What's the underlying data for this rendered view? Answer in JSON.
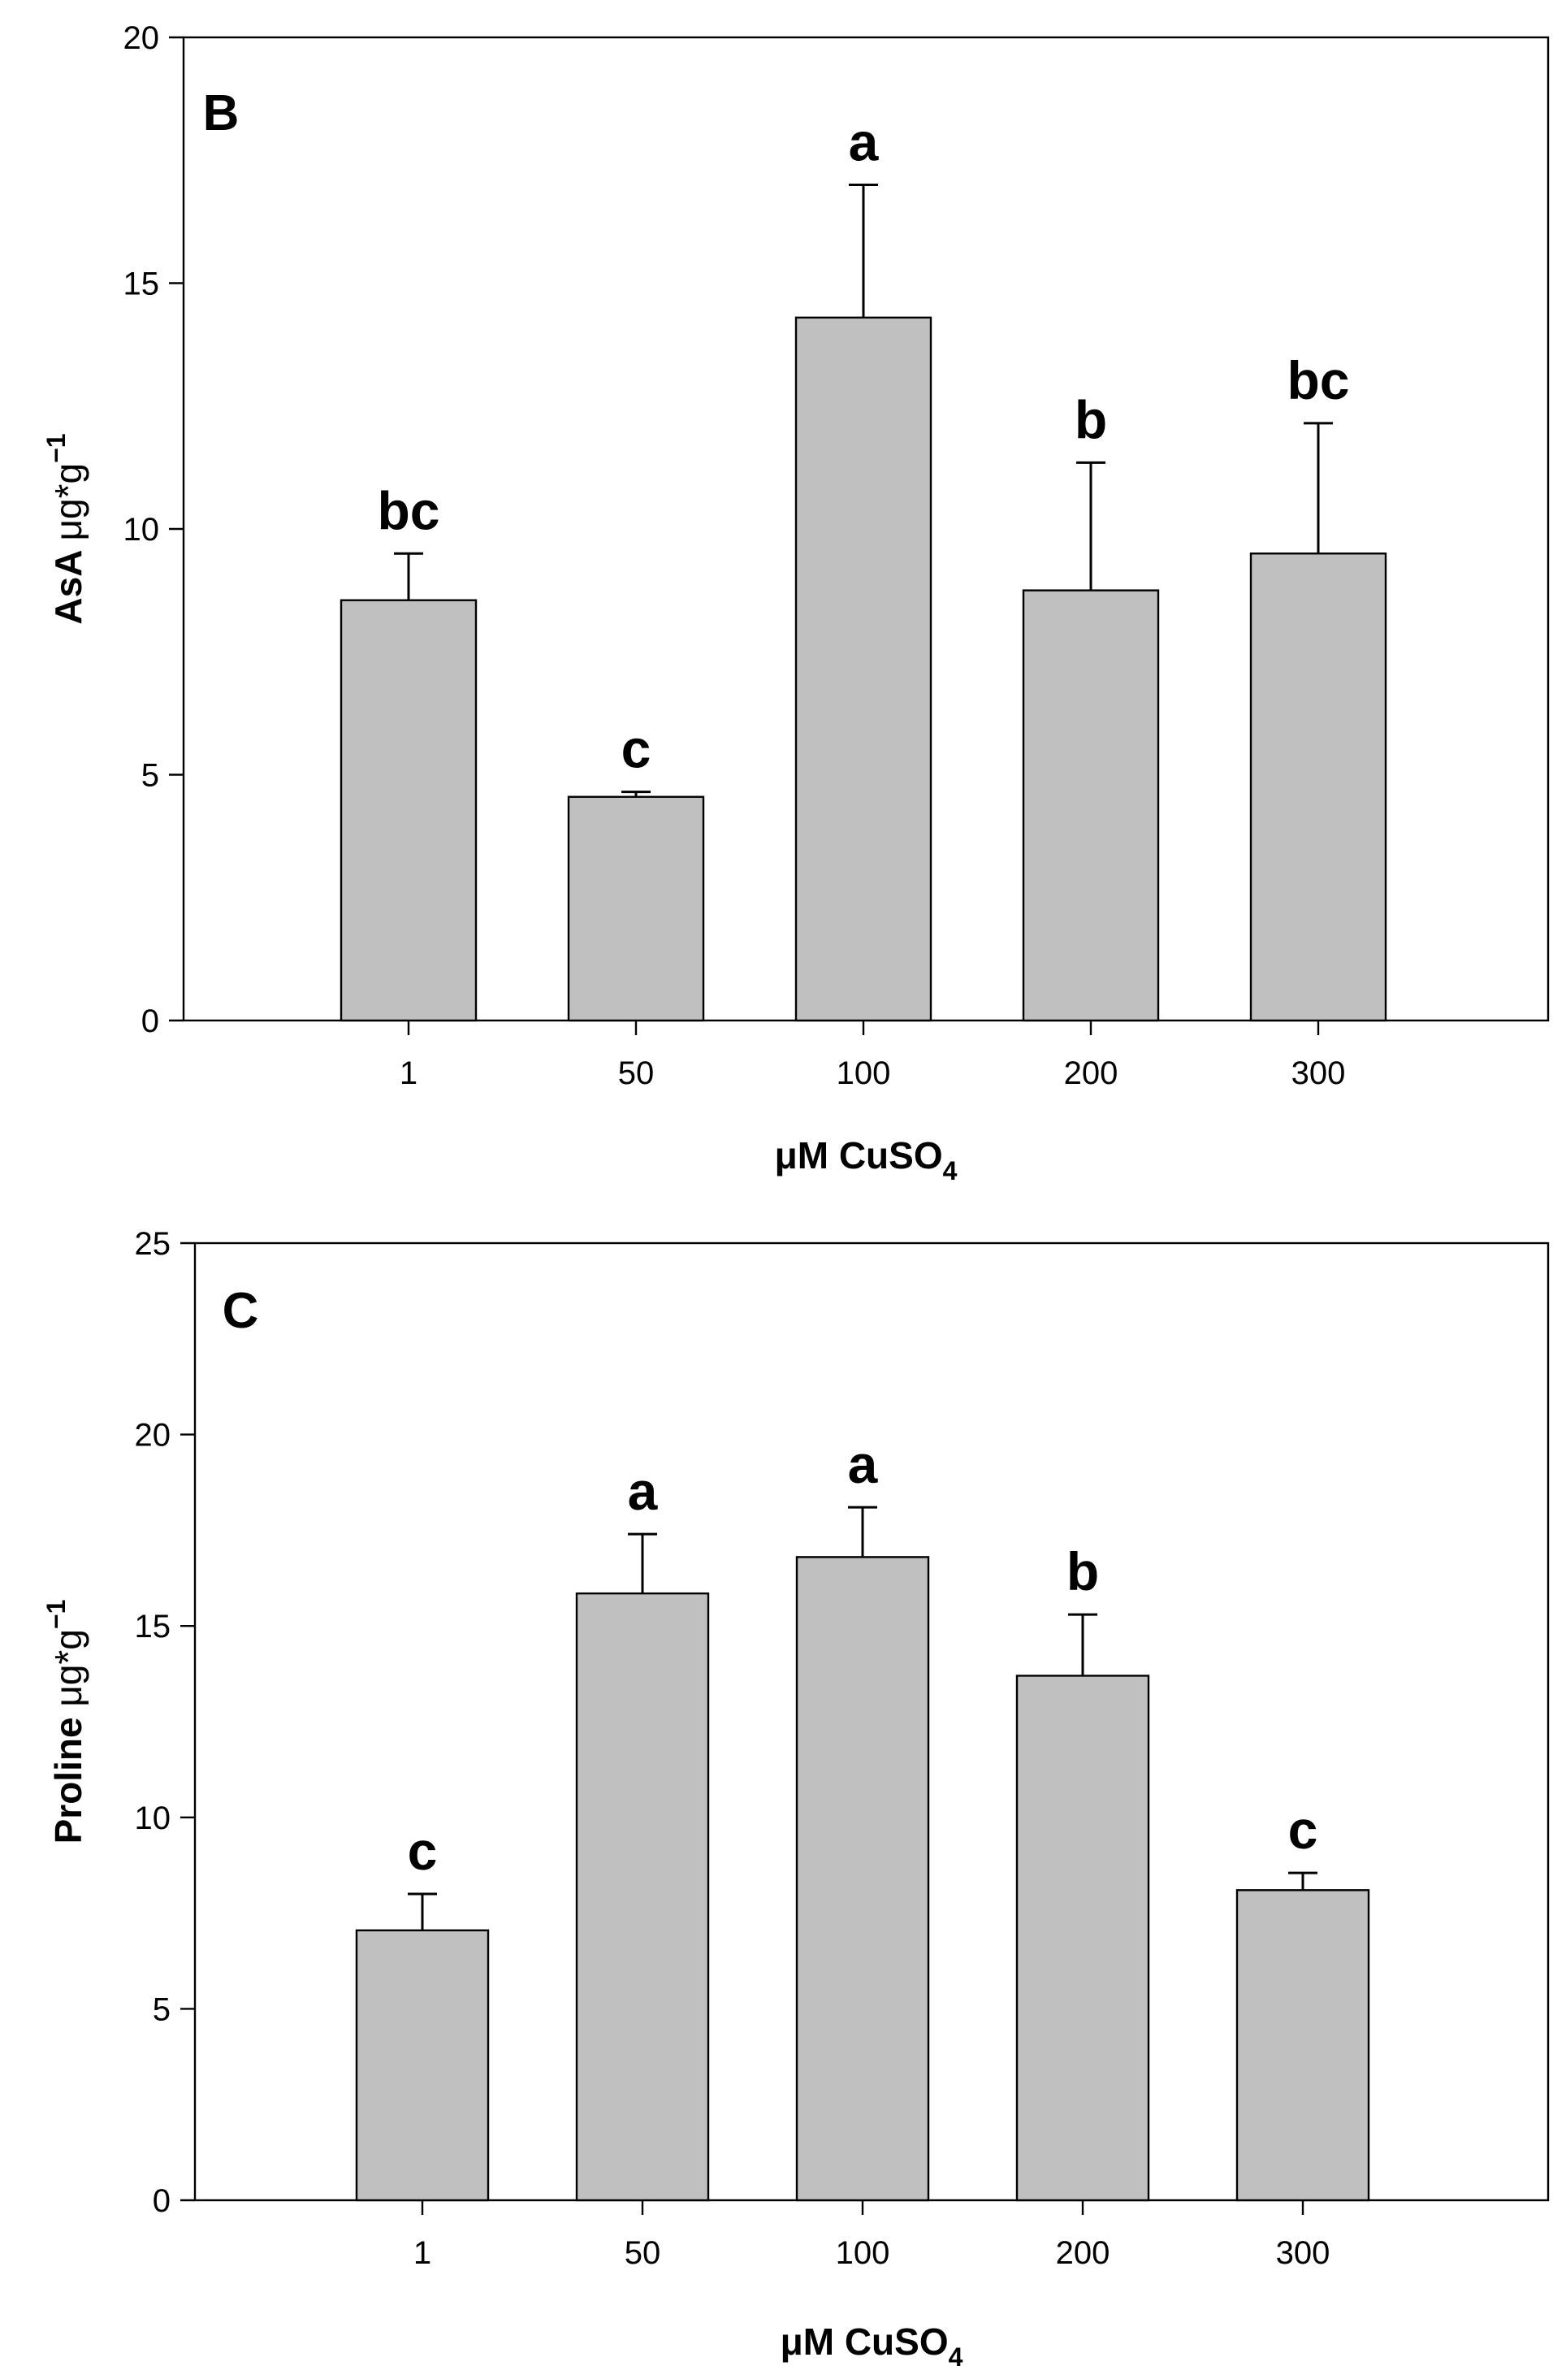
{
  "chart_data": [
    {
      "type": "bar",
      "panel": "B",
      "categories": [
        "1",
        "50",
        "100",
        "200",
        "300"
      ],
      "values": [
        8.55,
        4.55,
        14.3,
        8.75,
        9.5
      ],
      "errors": [
        0.95,
        0.1,
        2.7,
        2.6,
        2.65
      ],
      "significance": [
        "bc",
        "c",
        "a",
        "b",
        "bc"
      ],
      "ylabel_main": "AsA ",
      "ylabel_unit": "μg*g",
      "ylabel_sup": "−1",
      "xlabel_main": "μM CuSO",
      "xlabel_sub": "4",
      "ylim": [
        0,
        20
      ],
      "yticks": [
        0,
        5,
        10,
        15,
        20
      ],
      "ytick_labels": [
        "0",
        "5",
        "10",
        "15",
        "20"
      ]
    },
    {
      "type": "bar",
      "panel": "C",
      "categories": [
        "1",
        "50",
        "100",
        "200",
        "300"
      ],
      "values": [
        7.05,
        15.85,
        16.8,
        13.7,
        8.1
      ],
      "errors": [
        0.95,
        1.55,
        1.3,
        1.6,
        0.45
      ],
      "significance": [
        "c",
        "a",
        "a",
        "b",
        "c"
      ],
      "ylabel_main": "Proline ",
      "ylabel_unit": "μg*g",
      "ylabel_sup": "−1",
      "xlabel_main": "μM CuSO",
      "xlabel_sub": "4",
      "ylim": [
        0,
        25
      ],
      "yticks": [
        0,
        5,
        10,
        15,
        20,
        25
      ],
      "ytick_labels": [
        "0",
        "5",
        "10",
        "15",
        "20",
        "25"
      ]
    }
  ]
}
